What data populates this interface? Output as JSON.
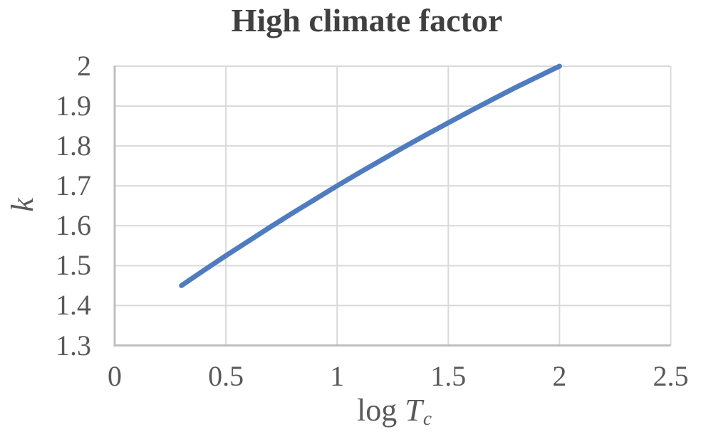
{
  "chart_data": {
    "type": "line",
    "title": "High climate factor",
    "xlabel": {
      "prefix": "log ",
      "variable": "T",
      "subscript": "c"
    },
    "ylabel": "k",
    "xlim": [
      0,
      2.5
    ],
    "ylim": [
      1.3,
      2.0
    ],
    "grid": "on",
    "legend": "none",
    "x_ticks": [
      {
        "value": 0,
        "label": "0"
      },
      {
        "value": 0.5,
        "label": "0.5"
      },
      {
        "value": 1,
        "label": "1"
      },
      {
        "value": 1.5,
        "label": "1.5"
      },
      {
        "value": 2,
        "label": "2"
      },
      {
        "value": 2.5,
        "label": "2.5"
      }
    ],
    "y_ticks": [
      {
        "value": 1.3,
        "label": "1.3"
      },
      {
        "value": 1.4,
        "label": "1.4"
      },
      {
        "value": 1.5,
        "label": "1.5"
      },
      {
        "value": 1.6,
        "label": "1.6"
      },
      {
        "value": 1.7,
        "label": "1.7"
      },
      {
        "value": 1.8,
        "label": "1.8"
      },
      {
        "value": 1.9,
        "label": "1.9"
      },
      {
        "value": 2.0,
        "label": "2"
      }
    ],
    "series": [
      {
        "name": "k vs log Tc",
        "color": "#4F7CBE",
        "points": [
          [
            0.3,
            1.45
          ],
          [
            0.4,
            1.488
          ],
          [
            0.5,
            1.525
          ],
          [
            0.6,
            1.561
          ],
          [
            0.7,
            1.597
          ],
          [
            0.8,
            1.632
          ],
          [
            0.9,
            1.666
          ],
          [
            1.0,
            1.7
          ],
          [
            1.1,
            1.733
          ],
          [
            1.2,
            1.765
          ],
          [
            1.3,
            1.797
          ],
          [
            1.4,
            1.828
          ],
          [
            1.5,
            1.858
          ],
          [
            1.6,
            1.888
          ],
          [
            1.7,
            1.917
          ],
          [
            1.8,
            1.946
          ],
          [
            1.9,
            1.973
          ],
          [
            2.0,
            2.0
          ]
        ]
      }
    ]
  },
  "colors": {
    "background": "#FFFFFF",
    "title_text": "#404040",
    "tick_text": "#595959",
    "axis_label_text": "#595959",
    "gridline": "#D9D9D9",
    "axis_line": "#BFBFBF",
    "series_line": "#4F7CBE"
  }
}
